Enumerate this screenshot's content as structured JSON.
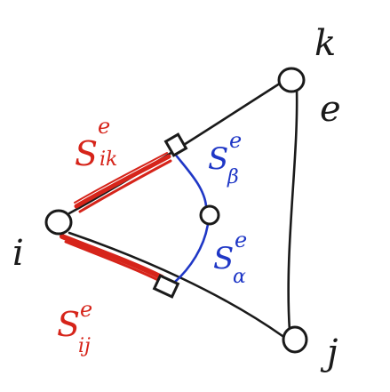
{
  "labels": {
    "node_i": "i",
    "node_j": "j",
    "node_k": "k",
    "element": "e",
    "s_ik": {
      "base": "S",
      "sup": "e",
      "sub": "ik"
    },
    "s_ij": {
      "base": "S",
      "sup": "e",
      "sub": "ij"
    },
    "s_beta": {
      "base": "S",
      "sup": "e",
      "sub": "β"
    },
    "s_alpha": {
      "base": "S",
      "sup": "e",
      "sub": "α"
    }
  },
  "colors": {
    "ink": "#1a1a1a",
    "red": "#d6241a",
    "blue": "#1f37c6"
  }
}
